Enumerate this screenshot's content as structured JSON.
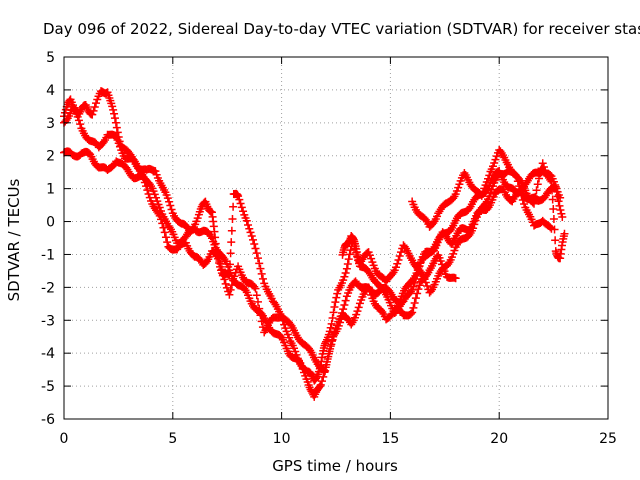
{
  "chart_data": {
    "type": "scatter",
    "title": "Day 096 of 2022, Sidereal Day-to-day VTEC variation (SDTVAR) for receiver stas",
    "xlabel": "GPS time / hours",
    "ylabel": "SDTVAR / TECUs",
    "xlim": [
      0,
      25
    ],
    "ylim": [
      -6,
      5
    ],
    "xticks": [
      0,
      5,
      10,
      15,
      20,
      25
    ],
    "yticks": [
      -6,
      -5,
      -4,
      -3,
      -2,
      -1,
      0,
      1,
      2,
      3,
      4,
      5
    ],
    "grid": true,
    "marker": "+",
    "series": [
      {
        "name": "trace-a",
        "color": "#ff0000",
        "points": [
          [
            0,
            3.2
          ],
          [
            0.3,
            3.7
          ],
          [
            0.7,
            3.3
          ],
          [
            1.0,
            3.5
          ],
          [
            1.3,
            3.3
          ],
          [
            1.7,
            3.9
          ],
          [
            2.0,
            4.0
          ],
          [
            2.3,
            3.2
          ],
          [
            2.6,
            2.4
          ],
          [
            3.0,
            2.0
          ],
          [
            3.4,
            1.7
          ],
          [
            3.8,
            1.5
          ],
          [
            4.2,
            1.6
          ],
          [
            4.6,
            0.9
          ],
          [
            5.0,
            0.3
          ],
          [
            5.4,
            -0.1
          ],
          [
            5.8,
            -0.3
          ],
          [
            6.2,
            0.2
          ],
          [
            6.5,
            0.6
          ],
          [
            6.8,
            0.3
          ],
          [
            7.0,
            -0.9
          ],
          [
            7.3,
            -1.6
          ],
          [
            7.6,
            -1.7
          ],
          [
            7.8,
            0.9
          ],
          [
            8.0,
            0.7
          ],
          [
            8.4,
            0.1
          ],
          [
            8.8,
            -0.9
          ],
          [
            9.2,
            -1.8
          ],
          [
            9.6,
            -2.5
          ],
          [
            10.0,
            -2.8
          ],
          [
            10.4,
            -3.7
          ],
          [
            10.8,
            -4.2
          ],
          [
            11.2,
            -4.6
          ],
          [
            11.5,
            -4.8
          ],
          [
            11.8,
            -4.4
          ],
          [
            12.0,
            -3.7
          ],
          [
            12.3,
            -3.1
          ],
          [
            12.6,
            -2.1
          ],
          [
            13.0,
            -1.4
          ],
          [
            13.3,
            -0.6
          ],
          [
            13.6,
            -1.3
          ],
          [
            14.0,
            -1.6
          ],
          [
            14.4,
            -1.8
          ],
          [
            14.8,
            -2.3
          ],
          [
            15.2,
            -2.7
          ],
          [
            15.6,
            -2.5
          ],
          [
            16.0,
            -2.0
          ],
          [
            16.4,
            -1.3
          ],
          [
            16.8,
            -0.9
          ],
          [
            17.2,
            -0.6
          ],
          [
            17.6,
            -0.3
          ],
          [
            18.0,
            0.0
          ],
          [
            18.4,
            0.3
          ],
          [
            18.8,
            0.6
          ],
          [
            19.2,
            0.8
          ],
          [
            19.6,
            1.2
          ],
          [
            20.0,
            1.5
          ],
          [
            20.4,
            1.1
          ],
          [
            20.8,
            0.8
          ],
          [
            21.2,
            1.2
          ],
          [
            21.6,
            1.4
          ],
          [
            22.0,
            1.6
          ],
          [
            22.4,
            1.3
          ],
          [
            22.8,
            0.8
          ]
        ]
      },
      {
        "name": "trace-b",
        "color": "#ff0000",
        "points": [
          [
            0,
            3.0
          ],
          [
            0.4,
            3.5
          ],
          [
            0.8,
            2.8
          ],
          [
            1.2,
            2.5
          ],
          [
            1.6,
            2.2
          ],
          [
            2.0,
            2.7
          ],
          [
            2.4,
            2.5
          ],
          [
            2.8,
            2.0
          ],
          [
            3.2,
            1.8
          ],
          [
            3.6,
            1.5
          ],
          [
            4.0,
            1.0
          ],
          [
            4.4,
            0.5
          ],
          [
            4.8,
            -0.2
          ],
          [
            5.2,
            -0.6
          ],
          [
            5.6,
            -0.5
          ],
          [
            6.0,
            -0.2
          ],
          [
            6.4,
            -0.3
          ],
          [
            6.8,
            -0.5
          ],
          [
            7.2,
            -1.0
          ],
          [
            7.6,
            -1.5
          ],
          [
            8.0,
            -1.9
          ],
          [
            8.4,
            -2.2
          ],
          [
            8.8,
            -2.6
          ],
          [
            9.2,
            -3.0
          ],
          [
            9.6,
            -3.3
          ],
          [
            10.0,
            -3.6
          ],
          [
            10.4,
            -4.0
          ],
          [
            10.8,
            -4.3
          ],
          [
            11.2,
            -4.8
          ],
          [
            11.5,
            -5.4
          ],
          [
            11.8,
            -4.9
          ],
          [
            12.2,
            -4.0
          ],
          [
            12.6,
            -3.0
          ],
          [
            13.0,
            -2.3
          ],
          [
            13.4,
            -1.8
          ],
          [
            13.8,
            -2.0
          ],
          [
            14.2,
            -2.2
          ],
          [
            14.6,
            -2.0
          ],
          [
            15.0,
            -2.2
          ],
          [
            15.4,
            -2.4
          ],
          [
            15.8,
            -2.0
          ],
          [
            16.2,
            -1.5
          ],
          [
            16.6,
            -1.0
          ],
          [
            17.0,
            -0.8
          ],
          [
            17.4,
            -0.4
          ],
          [
            17.8,
            -0.6
          ],
          [
            18.2,
            -0.3
          ],
          [
            18.6,
            -0.2
          ],
          [
            19.0,
            0.2
          ],
          [
            19.4,
            0.4
          ],
          [
            19.8,
            0.8
          ],
          [
            20.2,
            1.0
          ],
          [
            20.6,
            0.6
          ],
          [
            21.0,
            0.9
          ],
          [
            21.4,
            0.7
          ],
          [
            21.8,
            0.6
          ],
          [
            22.2,
            0.9
          ],
          [
            22.6,
            1.0
          ],
          [
            22.9,
            0.2
          ]
        ]
      },
      {
        "name": "trace-c",
        "color": "#ff0000",
        "points": [
          [
            0,
            2.1
          ],
          [
            0.4,
            2.0
          ],
          [
            0.8,
            2.1
          ],
          [
            1.2,
            2.0
          ],
          [
            1.6,
            1.7
          ],
          [
            2.0,
            1.5
          ],
          [
            2.4,
            1.9
          ],
          [
            2.8,
            1.6
          ],
          [
            3.2,
            1.4
          ],
          [
            3.6,
            1.3
          ],
          [
            4.0,
            0.7
          ],
          [
            4.4,
            0.1
          ],
          [
            4.8,
            -0.7
          ],
          [
            5.2,
            -0.9
          ],
          [
            5.6,
            -0.6
          ],
          [
            6.0,
            -1.1
          ],
          [
            6.4,
            -1.3
          ],
          [
            6.8,
            -0.9
          ],
          [
            7.2,
            -1.3
          ],
          [
            7.6,
            -2.2
          ],
          [
            8.0,
            -1.4
          ],
          [
            8.4,
            -1.8
          ],
          [
            8.8,
            -2.1
          ],
          [
            9.2,
            -3.3
          ],
          [
            9.6,
            -3.0
          ],
          [
            10.0,
            -2.8
          ],
          [
            10.4,
            -3.2
          ],
          [
            10.8,
            -3.5
          ],
          [
            11.2,
            -3.9
          ],
          [
            11.6,
            -4.2
          ],
          [
            12.0,
            -4.6
          ],
          [
            12.4,
            -3.4
          ],
          [
            12.8,
            -2.9
          ],
          [
            13.2,
            -3.1
          ],
          [
            13.6,
            -2.5
          ],
          [
            14.0,
            -2.0
          ],
          [
            14.4,
            -2.6
          ],
          [
            14.8,
            -3.0
          ],
          [
            15.2,
            -2.6
          ],
          [
            15.6,
            -2.9
          ],
          [
            16.0,
            -2.7
          ],
          [
            16.4,
            -1.9
          ],
          [
            16.8,
            -1.4
          ],
          [
            17.2,
            -1.1
          ],
          [
            17.6,
            -1.6
          ],
          [
            18.0,
            -1.8
          ]
        ]
      },
      {
        "name": "trace-d",
        "color": "#ff0000",
        "points": [
          [
            16.0,
            0.6
          ],
          [
            16.4,
            0.2
          ],
          [
            16.8,
            -0.2
          ],
          [
            17.2,
            0.3
          ],
          [
            17.6,
            0.5
          ],
          [
            18.0,
            0.9
          ],
          [
            18.4,
            1.4
          ],
          [
            18.8,
            1.1
          ],
          [
            19.2,
            0.7
          ],
          [
            19.6,
            1.6
          ],
          [
            20.0,
            2.1
          ],
          [
            20.4,
            1.8
          ],
          [
            20.8,
            1.3
          ],
          [
            21.2,
            1.0
          ],
          [
            21.6,
            0.5
          ],
          [
            22.0,
            1.8
          ],
          [
            22.4,
            1.2
          ],
          [
            22.6,
            -0.9
          ],
          [
            22.8,
            -1.1
          ],
          [
            23.0,
            -0.4
          ]
        ]
      },
      {
        "name": "trace-e",
        "color": "#ff0000",
        "points": [
          [
            12.8,
            -1.0
          ],
          [
            13.0,
            -0.7
          ],
          [
            13.2,
            -0.4
          ],
          [
            13.4,
            -0.8
          ],
          [
            13.6,
            -1.2
          ],
          [
            14.0,
            -1.0
          ],
          [
            14.4,
            -1.5
          ],
          [
            14.8,
            -1.9
          ],
          [
            15.2,
            -1.4
          ],
          [
            15.6,
            -0.8
          ],
          [
            16.0,
            -1.1
          ],
          [
            16.4,
            -1.6
          ],
          [
            16.8,
            -2.1
          ],
          [
            17.2,
            -1.7
          ],
          [
            17.6,
            -1.3
          ],
          [
            18.0,
            -0.8
          ],
          [
            18.4,
            -0.5
          ],
          [
            18.8,
            -0.2
          ],
          [
            19.2,
            0.4
          ],
          [
            19.6,
            0.9
          ],
          [
            20.0,
            1.4
          ],
          [
            20.4,
            1.6
          ],
          [
            20.8,
            1.3
          ],
          [
            21.2,
            0.5
          ],
          [
            21.6,
            -0.2
          ],
          [
            22.0,
            0.1
          ],
          [
            22.4,
            -0.3
          ]
        ]
      }
    ]
  }
}
